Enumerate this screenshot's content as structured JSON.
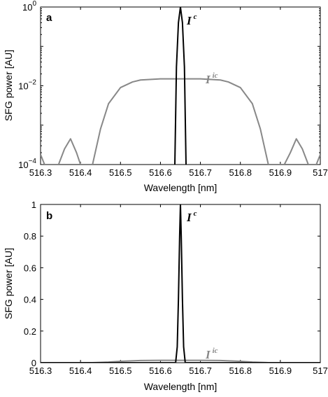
{
  "chart_data": [
    {
      "panel_label": "a",
      "type": "line",
      "y_scale": "log",
      "xlabel": "Wavelength [nm]",
      "ylabel": "SFG power [AU]",
      "xlim": [
        516.3,
        517.0
      ],
      "ylim": [
        0.0001,
        1.0
      ],
      "x_ticks": [
        "516.3",
        "516.4",
        "516.5",
        "516.6",
        "516.7",
        "516.8",
        "516.9",
        "517"
      ],
      "y_ticks": [
        {
          "value": 1,
          "base": "10",
          "exp": "0"
        },
        {
          "value": 0.01,
          "base": "10",
          "exp": "−2"
        },
        {
          "value": 0.0001,
          "base": "10",
          "exp": "−4"
        }
      ],
      "series": [
        {
          "name": "I",
          "name_sup": "c",
          "color": "#000000",
          "x": [
            516.636,
            516.64,
            516.645,
            516.65,
            516.655,
            516.66,
            516.664
          ],
          "y": [
            0.0001,
            0.03,
            0.4,
            1.0,
            0.4,
            0.03,
            0.0001
          ]
        },
        {
          "name": "I",
          "name_sup": "ic",
          "color": "#888888",
          "x": [
            516.3,
            516.31,
            516.32,
            516.33,
            516.345,
            516.36,
            516.375,
            516.39,
            516.4,
            516.41,
            516.425,
            516.43,
            516.45,
            516.47,
            516.5,
            516.53,
            516.55,
            516.6,
            516.65,
            516.7,
            516.75,
            516.77,
            516.8,
            516.83,
            516.85,
            516.87,
            516.875,
            516.89,
            516.9,
            516.91,
            516.925,
            516.94,
            516.955,
            516.97,
            516.98,
            516.99,
            517.0
          ],
          "y": [
            0.00018,
            0.0001,
            0.0001,
            0.0001,
            0.0001,
            0.00025,
            0.00045,
            0.0002,
            0.0001,
            0.0001,
            0.0001,
            0.0001,
            0.0008,
            0.0035,
            0.009,
            0.0125,
            0.014,
            0.015,
            0.015,
            0.015,
            0.014,
            0.0125,
            0.009,
            0.0035,
            0.0008,
            0.0001,
            0.0001,
            0.0001,
            0.0001,
            0.0001,
            0.0002,
            0.00045,
            0.00025,
            0.0001,
            0.0001,
            0.0001,
            0.00018
          ]
        }
      ]
    },
    {
      "panel_label": "b",
      "type": "line",
      "y_scale": "linear",
      "xlabel": "Wavelength [nm]",
      "ylabel": "SFG power [AU]",
      "xlim": [
        516.3,
        517.0
      ],
      "ylim": [
        0,
        1
      ],
      "x_ticks": [
        "516.3",
        "516.4",
        "516.5",
        "516.6",
        "516.7",
        "516.8",
        "516.9",
        "517"
      ],
      "y_ticks": [
        "0",
        "0.2",
        "0.4",
        "0.6",
        "0.8",
        "1"
      ],
      "series": [
        {
          "name": "I",
          "name_sup": "c",
          "color": "#000000",
          "x": [
            516.3,
            516.638,
            516.642,
            516.645,
            516.648,
            516.65,
            516.652,
            516.655,
            516.658,
            516.662,
            517.0
          ],
          "y": [
            0,
            0,
            0.1,
            0.4,
            0.8,
            1.0,
            0.8,
            0.4,
            0.1,
            0,
            0
          ]
        },
        {
          "name": "I",
          "name_sup": "ic",
          "color": "#888888",
          "x": [
            516.3,
            516.43,
            516.47,
            516.5,
            516.55,
            516.6,
            516.65,
            516.7,
            516.75,
            516.8,
            516.83,
            516.87,
            517.0
          ],
          "y": [
            0,
            0,
            0.004,
            0.009,
            0.014,
            0.015,
            0.015,
            0.015,
            0.014,
            0.009,
            0.004,
            0,
            0
          ]
        }
      ]
    }
  ]
}
